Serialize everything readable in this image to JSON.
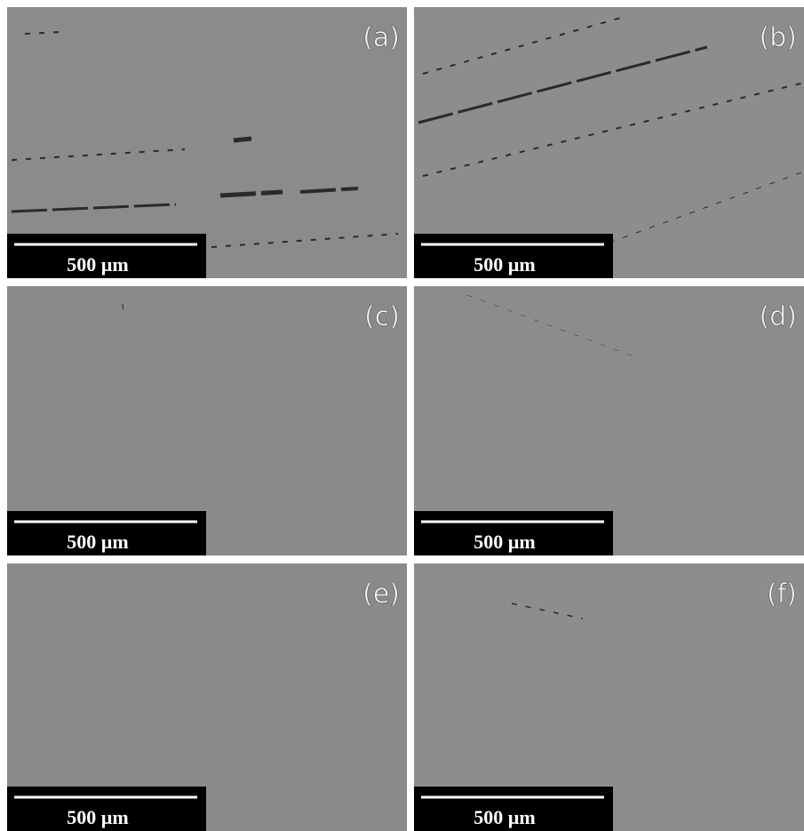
{
  "panels": [
    {
      "label": "(a)",
      "scale_bar": "500 µm"
    },
    {
      "label": "(b)",
      "scale_bar": "500 µm"
    },
    {
      "label": "(c)",
      "scale_bar": "500 µm"
    },
    {
      "label": "(d)",
      "scale_bar": "500 µm"
    },
    {
      "label": "(e)",
      "scale_bar": "500 µm"
    },
    {
      "label": "(f)",
      "scale_bar": "500 µm"
    }
  ]
}
